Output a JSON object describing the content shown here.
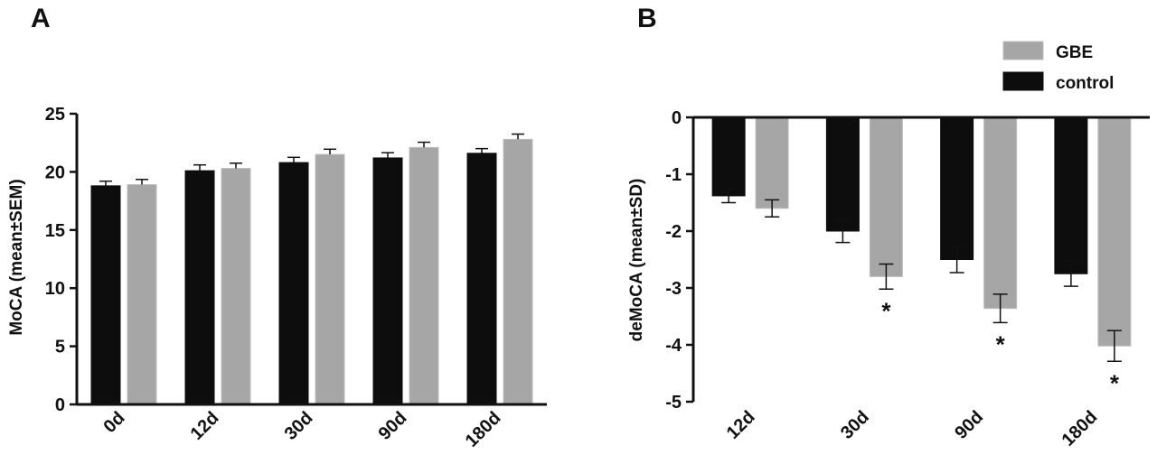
{
  "colors": {
    "control": "#0d0d0d",
    "gbe": "#a6a6a6",
    "gbe_edge": "#bdbdbd",
    "axis": "#111111"
  },
  "chart_data": [
    {
      "type": "bar",
      "panel": "A",
      "ylabel": "MoCA (mean±SEM)",
      "ylim": [
        0,
        25
      ],
      "yticks": [
        0,
        5,
        10,
        15,
        20,
        25
      ],
      "categories": [
        "0d",
        "12d",
        "30d",
        "90d",
        "180d"
      ],
      "series": [
        {
          "name": "control",
          "values": [
            18.8,
            20.1,
            20.8,
            21.2,
            21.6
          ],
          "errors": [
            0.4,
            0.5,
            0.45,
            0.45,
            0.4
          ]
        },
        {
          "name": "GBE",
          "values": [
            18.9,
            20.3,
            21.5,
            22.1,
            22.8
          ],
          "errors": [
            0.45,
            0.45,
            0.45,
            0.45,
            0.45
          ]
        }
      ],
      "grid": false
    },
    {
      "type": "bar",
      "panel": "B",
      "ylabel": "deMoCA (mean±SD)",
      "ylim": [
        -5,
        0
      ],
      "yticks": [
        0,
        -1,
        -2,
        -3,
        -4,
        -5
      ],
      "categories": [
        "12d",
        "30d",
        "90d",
        "180d"
      ],
      "series": [
        {
          "name": "GBE",
          "values": [
            -1.6,
            -2.8,
            -3.36,
            -4.02
          ],
          "errors": [
            0.15,
            0.22,
            0.25,
            0.27
          ]
        },
        {
          "name": "control",
          "values": [
            -1.38,
            -2.0,
            -2.5,
            -2.75
          ],
          "errors": [
            0.12,
            0.2,
            0.23,
            0.22
          ]
        }
      ],
      "annotations": [
        "*",
        "*",
        "*"
      ],
      "significant": [
        false,
        true,
        true,
        true
      ],
      "legend": [
        "GBE",
        "control"
      ],
      "legend_position": "top-right",
      "grid": false
    }
  ]
}
